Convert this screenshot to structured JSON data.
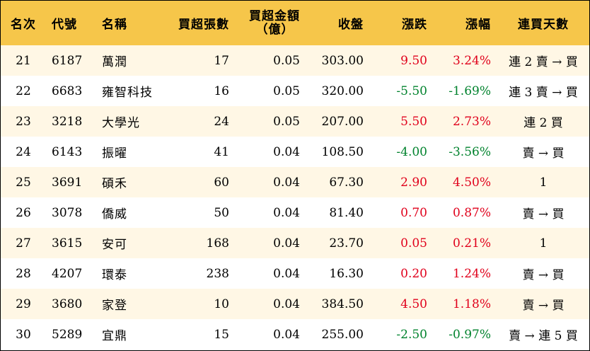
{
  "header": {
    "rank": "名次",
    "code": "代號",
    "name": "名稱",
    "shares": "買超張數",
    "amount_line1": "買超金額",
    "amount_line2": "（億）",
    "close": "收盤",
    "change": "漲跌",
    "pct": "漲幅",
    "days": "連買天數"
  },
  "colors": {
    "header_bg": "#f6c64a",
    "stripe_bg": "#fff7e5",
    "up": "#e0001b",
    "down": "#00822d"
  },
  "rows": [
    {
      "rank": "21",
      "code": "6187",
      "name": "萬潤",
      "shares": "17",
      "amount": "0.05",
      "close": "303.00",
      "change": "9.50",
      "pct": "3.24%",
      "days": "連 2 賣 → 買",
      "dir": "up"
    },
    {
      "rank": "22",
      "code": "6683",
      "name": "雍智科技",
      "shares": "16",
      "amount": "0.05",
      "close": "320.00",
      "change": "-5.50",
      "pct": "-1.69%",
      "days": "連 3 賣 → 買",
      "dir": "down"
    },
    {
      "rank": "23",
      "code": "3218",
      "name": "大學光",
      "shares": "24",
      "amount": "0.05",
      "close": "207.00",
      "change": "5.50",
      "pct": "2.73%",
      "days": "連 2 買",
      "dir": "up"
    },
    {
      "rank": "24",
      "code": "6143",
      "name": "振曜",
      "shares": "41",
      "amount": "0.04",
      "close": "108.50",
      "change": "-4.00",
      "pct": "-3.56%",
      "days": "賣 → 買",
      "dir": "down"
    },
    {
      "rank": "25",
      "code": "3691",
      "name": "碩禾",
      "shares": "60",
      "amount": "0.04",
      "close": "67.30",
      "change": "2.90",
      "pct": "4.50%",
      "days": "1",
      "dir": "up"
    },
    {
      "rank": "26",
      "code": "3078",
      "name": "僑威",
      "shares": "50",
      "amount": "0.04",
      "close": "81.40",
      "change": "0.70",
      "pct": "0.87%",
      "days": "賣 → 買",
      "dir": "up"
    },
    {
      "rank": "27",
      "code": "3615",
      "name": "安可",
      "shares": "168",
      "amount": "0.04",
      "close": "23.70",
      "change": "0.05",
      "pct": "0.21%",
      "days": "1",
      "dir": "up"
    },
    {
      "rank": "28",
      "code": "4207",
      "name": "環泰",
      "shares": "238",
      "amount": "0.04",
      "close": "16.30",
      "change": "0.20",
      "pct": "1.24%",
      "days": "賣 → 買",
      "dir": "up"
    },
    {
      "rank": "29",
      "code": "3680",
      "name": "家登",
      "shares": "10",
      "amount": "0.04",
      "close": "384.50",
      "change": "4.50",
      "pct": "1.18%",
      "days": "賣 → 買",
      "dir": "up"
    },
    {
      "rank": "30",
      "code": "5289",
      "name": "宜鼎",
      "shares": "15",
      "amount": "0.04",
      "close": "255.00",
      "change": "-2.50",
      "pct": "-0.97%",
      "days": "賣 → 連 5 買",
      "dir": "down"
    }
  ]
}
